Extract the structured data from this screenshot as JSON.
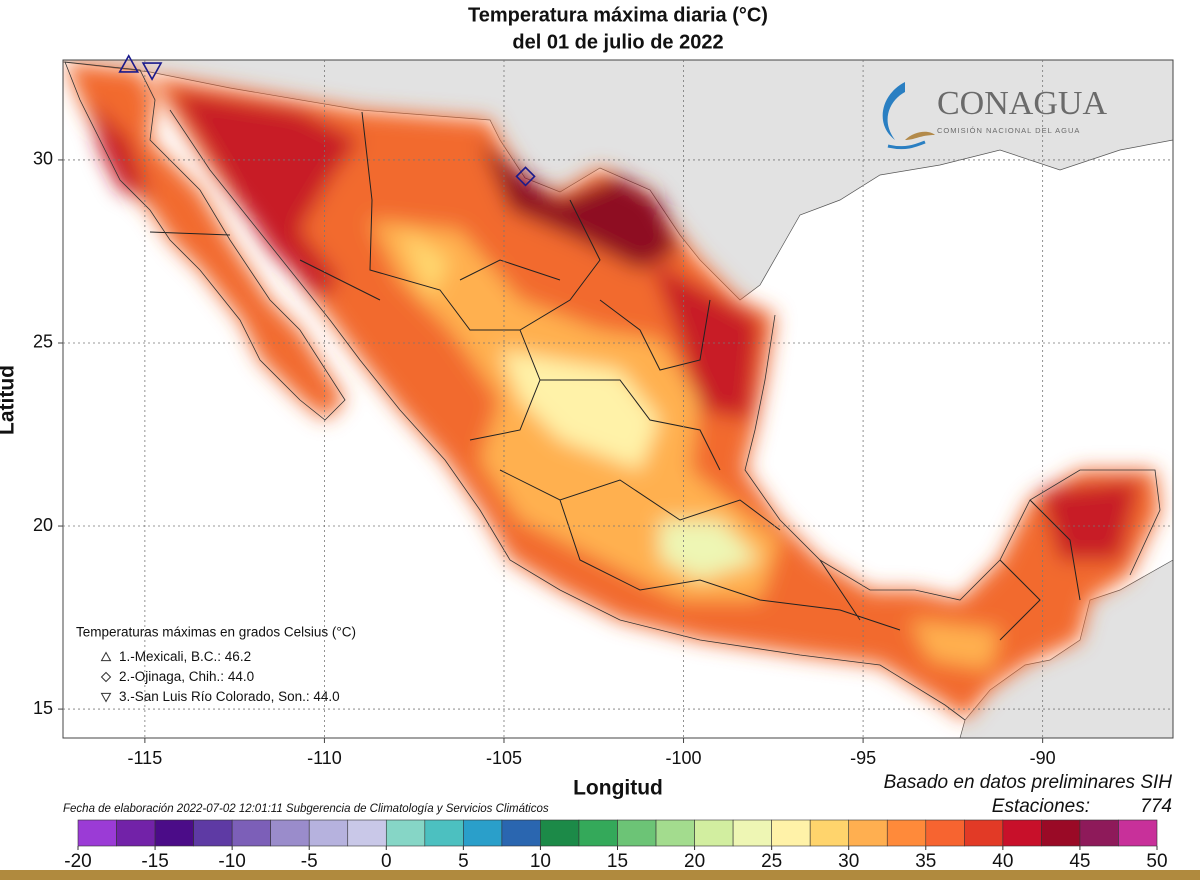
{
  "title": "Temperatura máxima diaria (°C)",
  "subtitle": "del 01 de julio de 2022",
  "map": {
    "xlabel": "Longitud",
    "ylabel": "Latitud",
    "xlim": [
      -117.28,
      -86.37
    ],
    "ylim": [
      14.21,
      32.73
    ],
    "xticks": [
      -115,
      -110,
      -105,
      -100,
      -95,
      -90
    ],
    "yticks": [
      15,
      20,
      25,
      30
    ],
    "grid": true
  },
  "logo": {
    "name": "CONAGUA",
    "tagline": "COMISIÓN NACIONAL DEL AGUA"
  },
  "legend_title": "Temperaturas máximas en grados Celsius (°C)",
  "stations": {
    "labels": [
      "1.-Mexicali, B.C.:",
      "2.-Ojinaga, Chih.:",
      "3.-San Luis Río Colorado, Son.:"
    ],
    "values": [
      46.2,
      44,
      44
    ],
    "value_labels": [
      "46.2",
      "44.0",
      "44.0"
    ],
    "lon": [
      -115.45,
      -104.4,
      -114.8
    ],
    "lat": [
      32.6,
      29.55,
      32.45
    ],
    "symbols": [
      "triangle-up",
      "diamond",
      "triangle-down"
    ]
  },
  "source_note": "Basado en datos preliminares SIH",
  "stations_count_label": "Estaciones:",
  "stations_count": 774,
  "footer": "Fecha de elaboración 2022-07-02 12:01:11 Subgerencia de Climatología y Servicios Climáticos",
  "colorbar": {
    "bins": [
      -20,
      -17.5,
      -15,
      -12.5,
      -10,
      -7.5,
      -5,
      -2.5,
      0,
      2.5,
      5,
      7.5,
      10,
      12.5,
      15,
      17.5,
      20,
      22.5,
      25,
      27.5,
      30,
      32.5,
      35,
      37.5,
      40,
      42.5,
      45,
      47.5,
      50
    ],
    "colors": [
      "#9b3bd6",
      "#7222a8",
      "#4b0c88",
      "#5e3aa4",
      "#7c5fb8",
      "#9a8ccb",
      "#b6b2de",
      "#c9c8e8",
      "#86d6c6",
      "#4cc0c0",
      "#2a9fca",
      "#2a66b0",
      "#1c8a48",
      "#34a95a",
      "#6cc476",
      "#a3dc8e",
      "#d2eea0",
      "#eef6b4",
      "#fff2a8",
      "#ffd46c",
      "#ffaf50",
      "#ff8a3a",
      "#f76430",
      "#e23a26",
      "#c8102a",
      "#9a0a26",
      "#8e1a5a",
      "#c8309a"
    ],
    "ticks": [
      -20,
      -15,
      -10,
      -5,
      0,
      5,
      10,
      15,
      20,
      25,
      30,
      35,
      40,
      45,
      50
    ]
  }
}
